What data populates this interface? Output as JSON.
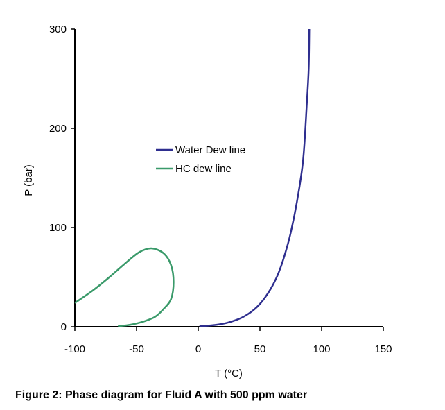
{
  "caption": "Figure 2: Phase diagram for Fluid A with 500 ppm water",
  "chart_data": {
    "type": "line",
    "xlabel": "T (°C)",
    "ylabel": "P (bar)",
    "xlim": [
      -100,
      150
    ],
    "ylim": [
      0,
      300
    ],
    "x_ticks": [
      -100,
      -50,
      0,
      50,
      100,
      150
    ],
    "y_ticks": [
      0,
      100,
      200,
      300
    ],
    "x_tick_labels": [
      "-100",
      "-50",
      "0",
      "50",
      "100",
      "150"
    ],
    "y_tick_labels": [
      "0",
      "100",
      "200",
      "300"
    ],
    "grid": false,
    "legend_position": "center",
    "series": [
      {
        "name": "Water Dew line",
        "color": "#2e2e8f",
        "points": [
          [
            1,
            0.5
          ],
          [
            5,
            0.8
          ],
          [
            10,
            1.3
          ],
          [
            15,
            2
          ],
          [
            20,
            3
          ],
          [
            25,
            4.5
          ],
          [
            30,
            6.5
          ],
          [
            35,
            9
          ],
          [
            40,
            12.5
          ],
          [
            45,
            17
          ],
          [
            50,
            23
          ],
          [
            55,
            31
          ],
          [
            60,
            41
          ],
          [
            65,
            54
          ],
          [
            70,
            72
          ],
          [
            75,
            95
          ],
          [
            80,
            126
          ],
          [
            85,
            168
          ],
          [
            88,
            225
          ],
          [
            89.5,
            260
          ],
          [
            90,
            300
          ]
        ]
      },
      {
        "name": "HC dew line",
        "color": "#3a9a6a",
        "points": [
          [
            -65,
            0.5
          ],
          [
            -55,
            2
          ],
          [
            -45,
            5
          ],
          [
            -35,
            10
          ],
          [
            -28,
            18
          ],
          [
            -22,
            28
          ],
          [
            -20,
            45
          ],
          [
            -22,
            62
          ],
          [
            -28,
            74
          ],
          [
            -38,
            79
          ],
          [
            -48,
            75
          ],
          [
            -60,
            63
          ],
          [
            -72,
            50
          ],
          [
            -85,
            37
          ],
          [
            -100,
            24
          ]
        ]
      }
    ]
  }
}
